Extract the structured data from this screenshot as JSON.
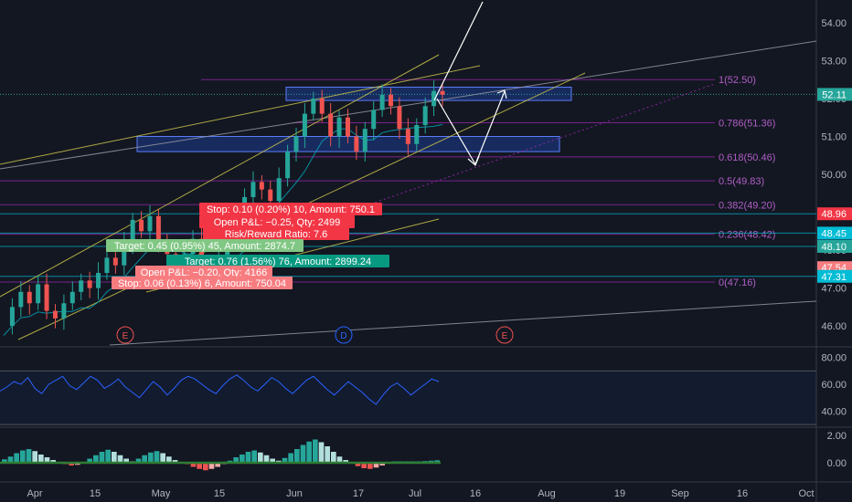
{
  "chart_data": {
    "type": "candlestick",
    "price_axis": {
      "ticks": [
        "54.00",
        "53.00",
        "52.00",
        "51.00",
        "50.00",
        "49.00",
        "48.00",
        "47.00",
        "46.00"
      ],
      "ylim": [
        45.45,
        54.6
      ]
    },
    "time_axis": {
      "ticks": [
        "Apr",
        "15",
        "May",
        "15",
        "Jun",
        "17",
        "Jul",
        "16",
        "Aug",
        "19",
        "Sep",
        "16",
        "Oct"
      ]
    },
    "price_series": [
      46.0,
      46.5,
      46.9,
      46.6,
      47.1,
      46.4,
      46.2,
      46.6,
      46.9,
      47.2,
      47.0,
      47.4,
      47.8,
      47.6,
      48.2,
      48.8,
      48.5,
      48.9,
      48.2,
      47.9,
      47.6,
      47.9,
      48.3,
      47.6,
      47.2,
      47.8,
      48.4,
      49.0,
      49.4,
      49.8,
      49.6,
      49.3,
      49.9,
      50.6,
      51.0,
      51.6,
      52.0,
      51.6,
      51.0,
      51.5,
      51.0,
      50.6,
      51.2,
      51.7,
      52.1,
      51.8,
      51.2,
      50.8,
      51.3,
      51.8,
      52.2,
      52.1
    ],
    "fib_levels": [
      {
        "label": "1(52.50)",
        "value": 52.5
      },
      {
        "label": "0.786(51.36)",
        "value": 51.36
      },
      {
        "label": "0.618(50.46)",
        "value": 50.46
      },
      {
        "label": "0.5(49.83)",
        "value": 49.83
      },
      {
        "label": "0.382(49.20)",
        "value": 49.2
      },
      {
        "label": "0.236(48.42)",
        "value": 48.42
      },
      {
        "label": "0(47.16)",
        "value": 47.16
      }
    ],
    "price_tags": [
      {
        "text": "52.11",
        "value": 52.11,
        "color": "#26a69a"
      },
      {
        "text": "48.96",
        "value": 48.96,
        "color": "#f23645"
      },
      {
        "text": "48.45",
        "value": 48.45,
        "color": "#00bcd4"
      },
      {
        "text": "48.10",
        "value": 48.1,
        "color": "#26a69a"
      },
      {
        "text": "47.54",
        "value": 47.54,
        "color": "#f77c80"
      },
      {
        "text": "47.31",
        "value": 47.31,
        "color": "#00bcd4"
      }
    ],
    "zones": [
      {
        "top": 52.3,
        "bottom": 51.95
      },
      {
        "top": 51.0,
        "bottom": 50.6
      }
    ],
    "trade_labels": [
      {
        "text": "Stop: 0.10 (0.20%) 10, Amount: 750.1",
        "color": "#f23645"
      },
      {
        "text": "Open P&L: −0.25, Qty: 2499",
        "color": "#f23645"
      },
      {
        "text": "Risk/Reward Ratio: 7.6",
        "color": "#f23645"
      },
      {
        "text": "Target: 0.45 (0.95%) 45, Amount: 2874.7",
        "color": "#81c784"
      },
      {
        "text": "Target: 0.76 (1.56%) 76, Amount: 2899.24",
        "color": "#089981"
      },
      {
        "text": "Open P&L: −0.20, Qty: 4166",
        "color": "#f77c80"
      },
      {
        "text": "Stop: 0.06 (0.13%) 6, Amount: 750.04",
        "color": "#f77c80"
      }
    ],
    "events": [
      "E",
      "D",
      "E"
    ],
    "rsi_axis": {
      "ticks": [
        "80.00",
        "60.00",
        "40.00"
      ],
      "ylim": [
        28,
        88
      ]
    },
    "rsi_series": [
      55,
      58,
      62,
      60,
      65,
      57,
      53,
      60,
      63,
      66,
      59,
      56,
      61,
      66,
      63,
      57,
      60,
      64,
      58,
      54,
      50,
      56,
      62,
      58,
      52,
      57,
      63,
      66,
      64,
      60,
      56,
      53,
      59,
      64,
      67,
      63,
      58,
      55,
      60,
      65,
      62,
      57,
      53,
      58,
      63,
      66,
      61,
      56,
      52,
      57,
      62,
      58,
      54,
      49,
      45,
      52,
      58,
      61,
      57,
      52,
      56,
      60,
      64,
      62
    ],
    "macd_axis": {
      "ticks": [
        "2.00",
        "0.00"
      ],
      "ylim": [
        -1.4,
        2.6
      ]
    },
    "macd_hist": [
      0.25,
      0.45,
      0.7,
      0.9,
      1.0,
      0.85,
      0.6,
      0.4,
      0.2,
      0.05,
      -0.1,
      -0.2,
      -0.15,
      0.05,
      0.3,
      0.55,
      0.8,
      0.95,
      0.8,
      0.55,
      0.3,
      0.1,
      0.3,
      0.55,
      0.75,
      0.85,
      0.7,
      0.45,
      0.2,
      0.05,
      -0.1,
      -0.3,
      -0.45,
      -0.55,
      -0.45,
      -0.3,
      -0.1,
      0.15,
      0.4,
      0.6,
      0.8,
      0.9,
      0.75,
      0.55,
      0.3,
      0.15,
      0.35,
      0.7,
      1.0,
      1.3,
      1.55,
      1.7,
      1.5,
      1.2,
      0.8,
      0.45,
      0.2,
      -0.05,
      -0.25,
      -0.4,
      -0.45,
      -0.35,
      -0.2,
      -0.05,
      0.1,
      0.1,
      0.1,
      0.1,
      0.1,
      0.12,
      0.15,
      0.18
    ]
  }
}
